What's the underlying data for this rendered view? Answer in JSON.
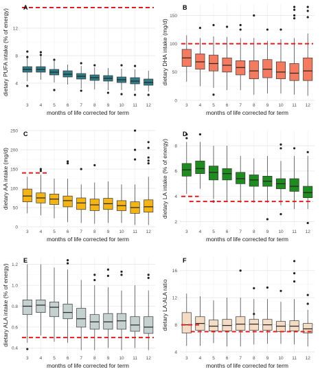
{
  "xlabel": "months of life corrected for term",
  "chart_data": [
    {
      "panel": "A",
      "type": "box",
      "ylabel": "dietary PUFA intake (% of energy)",
      "ylim": [
        1.5,
        15.5
      ],
      "yticks": [
        4,
        8,
        12
      ],
      "categories": [
        "3",
        "4",
        "5",
        "6",
        "7",
        "8",
        "9",
        "10",
        "11",
        "12"
      ],
      "fill": "#2e7d87",
      "reference_lines": [
        {
          "y": 15.0,
          "x_start_category": "3",
          "x_end_category": "12"
        }
      ],
      "boxes": [
        {
          "q1": 5.6,
          "median": 6.0,
          "q3": 6.4,
          "whisker_low": 4.3,
          "whisker_high": 8.0,
          "outliers": [
            8.6,
            3.6,
            7.8
          ]
        },
        {
          "q1": 5.6,
          "median": 6.0,
          "q3": 6.4,
          "whisker_low": 4.5,
          "whisker_high": 7.9,
          "outliers": [
            8.5,
            8.1
          ]
        },
        {
          "q1": 5.2,
          "median": 5.6,
          "q3": 6.0,
          "whisker_low": 4.1,
          "whisker_high": 7.2,
          "outliers": [
            7.4,
            3.0
          ]
        },
        {
          "q1": 4.9,
          "median": 5.3,
          "q3": 5.8,
          "whisker_low": 3.8,
          "whisker_high": 6.7,
          "outliers": []
        },
        {
          "q1": 4.6,
          "median": 5.0,
          "q3": 5.4,
          "whisker_low": 3.2,
          "whisker_high": 6.5,
          "outliers": [
            6.9,
            2.9
          ]
        },
        {
          "q1": 4.4,
          "median": 4.8,
          "q3": 5.2,
          "whisker_low": 3.1,
          "whisker_high": 6.3,
          "outliers": [
            6.6
          ]
        },
        {
          "q1": 4.3,
          "median": 4.7,
          "q3": 5.1,
          "whisker_low": 3.0,
          "whisker_high": 6.2,
          "outliers": [
            2.6
          ]
        },
        {
          "q1": 4.1,
          "median": 4.5,
          "q3": 4.9,
          "whisker_low": 3.0,
          "whisker_high": 6.1,
          "outliers": [
            6.6,
            2.4
          ]
        },
        {
          "q1": 3.9,
          "median": 4.3,
          "q3": 4.8,
          "whisker_low": 2.9,
          "whisker_high": 6.0,
          "outliers": [
            6.5,
            2.3
          ]
        },
        {
          "q1": 3.7,
          "median": 4.1,
          "q3": 4.6,
          "whisker_low": 2.8,
          "whisker_high": 5.8,
          "outliers": [
            2.3
          ]
        }
      ]
    },
    {
      "panel": "B",
      "type": "box",
      "ylabel": "dietary DHA intake (mg/d)",
      "ylim": [
        0,
        170
      ],
      "yticks": [
        0,
        50,
        100,
        150
      ],
      "categories": [
        "3",
        "4",
        "5",
        "6",
        "7",
        "8",
        "9",
        "10",
        "11",
        "12"
      ],
      "fill": "#f47b60",
      "reference_lines": [
        {
          "y": 100,
          "x_start_category": "3",
          "x_end_category": "12"
        }
      ],
      "boxes": [
        {
          "q1": 60,
          "median": 75,
          "q3": 90,
          "whisker_low": 33,
          "whisker_high": 115,
          "outliers": []
        },
        {
          "q1": 55,
          "median": 68,
          "q3": 82,
          "whisker_low": 25,
          "whisker_high": 110,
          "outliers": [
            128
          ]
        },
        {
          "q1": 52,
          "median": 65,
          "q3": 80,
          "whisker_low": 22,
          "whisker_high": 113,
          "outliers": [
            133,
            10
          ]
        },
        {
          "q1": 50,
          "median": 62,
          "q3": 75,
          "whisker_low": 18,
          "whisker_high": 112,
          "outliers": [
            130
          ]
        },
        {
          "q1": 45,
          "median": 58,
          "q3": 70,
          "whisker_low": 18,
          "whisker_high": 110,
          "outliers": [
            133,
            125
          ]
        },
        {
          "q1": 38,
          "median": 52,
          "q3": 70,
          "whisker_low": 10,
          "whisker_high": 110,
          "outliers": [
            150
          ]
        },
        {
          "q1": 40,
          "median": 55,
          "q3": 72,
          "whisker_low": 12,
          "whisker_high": 105,
          "outliers": [
            125
          ]
        },
        {
          "q1": 38,
          "median": 50,
          "q3": 68,
          "whisker_low": 12,
          "whisker_high": 108,
          "outliers": [
            125
          ]
        },
        {
          "q1": 35,
          "median": 48,
          "q3": 65,
          "whisker_low": 10,
          "whisker_high": 110,
          "outliers": [
            165,
            160,
            150,
            145
          ]
        },
        {
          "q1": 35,
          "median": 52,
          "q3": 75,
          "whisker_low": 8,
          "whisker_high": 118,
          "outliers": [
            165,
            158,
            147
          ]
        }
      ]
    },
    {
      "panel": "C",
      "type": "box",
      "ylabel": "dietary AA intake (mg/d)",
      "ylim": [
        0,
        250
      ],
      "yticks": [
        0,
        50,
        100,
        150,
        200,
        250
      ],
      "categories": [
        "3",
        "4",
        "5",
        "6",
        "7",
        "8",
        "9",
        "10",
        "11",
        "12"
      ],
      "fill": "#f4b414",
      "reference_lines": [
        {
          "y": 140,
          "x_start_category": "3",
          "x_end_category": "4"
        }
      ],
      "boxes": [
        {
          "q1": 65,
          "median": 80,
          "q3": 98,
          "whisker_low": 35,
          "whisker_high": 130,
          "outliers": []
        },
        {
          "q1": 62,
          "median": 75,
          "q3": 88,
          "whisker_low": 30,
          "whisker_high": 135,
          "outliers": [
            150,
            145
          ]
        },
        {
          "q1": 58,
          "median": 72,
          "q3": 85,
          "whisker_low": 22,
          "whisker_high": 125,
          "outliers": []
        },
        {
          "q1": 52,
          "median": 68,
          "q3": 80,
          "whisker_low": 12,
          "whisker_high": 125,
          "outliers": [
            170,
            165
          ]
        },
        {
          "q1": 45,
          "median": 62,
          "q3": 75,
          "whisker_low": 10,
          "whisker_high": 110,
          "outliers": [
            150
          ]
        },
        {
          "q1": 42,
          "median": 57,
          "q3": 72,
          "whisker_low": 8,
          "whisker_high": 115,
          "outliers": [
            160
          ]
        },
        {
          "q1": 45,
          "median": 60,
          "q3": 74,
          "whisker_low": 10,
          "whisker_high": 118,
          "outliers": []
        },
        {
          "q1": 42,
          "median": 55,
          "q3": 68,
          "whisker_low": 10,
          "whisker_high": 110,
          "outliers": []
        },
        {
          "q1": 35,
          "median": 50,
          "q3": 65,
          "whisker_low": 5,
          "whisker_high": 110,
          "outliers": [
            250,
            200,
            175
          ]
        },
        {
          "q1": 38,
          "median": 52,
          "q3": 70,
          "whisker_low": 5,
          "whisker_high": 130,
          "outliers": [
            220,
            205,
            180,
            172,
            165
          ]
        }
      ]
    },
    {
      "panel": "D",
      "type": "box",
      "ylabel": "dietary LA intake (% of energy)",
      "ylim": [
        1.6,
        9.2
      ],
      "yticks": [
        2,
        4,
        6,
        8
      ],
      "categories": [
        "3",
        "4",
        "5",
        "6",
        "7",
        "8",
        "9",
        "10",
        "11",
        "12"
      ],
      "fill": "#1e8c1e",
      "reference_lines": [
        {
          "y": 4.0,
          "x_start_category": "3",
          "x_end_category": "3.4"
        },
        {
          "y": 3.6,
          "x_start_category": "3.7",
          "x_end_category": "12"
        }
      ],
      "boxes": [
        {
          "q1": 5.6,
          "median": 6.1,
          "q3": 6.6,
          "whisker_low": 4.2,
          "whisker_high": 8.3,
          "outliers": [
            8.9,
            8.6
          ]
        },
        {
          "q1": 5.8,
          "median": 6.2,
          "q3": 6.8,
          "whisker_low": 4.6,
          "whisker_high": 8.3,
          "outliers": [
            8.9
          ]
        },
        {
          "q1": 5.3,
          "median": 5.9,
          "q3": 6.4,
          "whisker_low": 3.8,
          "whisker_high": 8.0,
          "outliers": [
            3.6
          ]
        },
        {
          "q1": 5.3,
          "median": 5.8,
          "q3": 6.2,
          "whisker_low": 3.6,
          "whisker_high": 8.0,
          "outliers": []
        },
        {
          "q1": 5.0,
          "median": 5.4,
          "q3": 5.9,
          "whisker_low": 3.5,
          "whisker_high": 7.2,
          "outliers": []
        },
        {
          "q1": 4.8,
          "median": 5.3,
          "q3": 5.7,
          "whisker_low": 3.5,
          "whisker_high": 7.0,
          "outliers": []
        },
        {
          "q1": 4.8,
          "median": 5.2,
          "q3": 5.6,
          "whisker_low": 3.5,
          "whisker_high": 7.2,
          "outliers": [
            2.2
          ]
        },
        {
          "q1": 4.6,
          "median": 5.0,
          "q3": 5.4,
          "whisker_low": 3.3,
          "whisker_high": 6.8,
          "outliers": [
            8.1,
            7.8,
            2.6
          ]
        },
        {
          "q1": 4.4,
          "median": 4.8,
          "q3": 5.4,
          "whisker_low": 3.0,
          "whisker_high": 7.2,
          "outliers": [
            7.8
          ]
        },
        {
          "q1": 3.9,
          "median": 4.3,
          "q3": 4.8,
          "whisker_low": 3.0,
          "whisker_high": 7.2,
          "outliers": [
            7.5,
            1.9
          ]
        }
      ]
    },
    {
      "panel": "E",
      "type": "box",
      "ylabel": "dietary ALA intake (% of energy)",
      "ylim": [
        0.35,
        1.27
      ],
      "yticks": [
        0.4,
        0.6,
        0.8,
        1.0,
        1.2
      ],
      "categories": [
        "3",
        "4",
        "5",
        "6",
        "7",
        "8",
        "9",
        "10",
        "11",
        "12"
      ],
      "fill": "#c5d1cf",
      "reference_lines": [
        {
          "y": 0.5,
          "x_start_category": "3",
          "x_end_category": "12"
        }
      ],
      "boxes": [
        {
          "q1": 0.72,
          "median": 0.8,
          "q3": 0.86,
          "whisker_low": 0.45,
          "whisker_high": 1.2,
          "outliers": [
            0.39
          ]
        },
        {
          "q1": 0.74,
          "median": 0.81,
          "q3": 0.86,
          "whisker_low": 0.52,
          "whisker_high": 1.2,
          "outliers": []
        },
        {
          "q1": 0.7,
          "median": 0.79,
          "q3": 0.84,
          "whisker_low": 0.46,
          "whisker_high": 1.17,
          "outliers": []
        },
        {
          "q1": 0.68,
          "median": 0.74,
          "q3": 0.82,
          "whisker_low": 0.45,
          "whisker_high": 1.15,
          "outliers": [
            1.24,
            1.21
          ]
        },
        {
          "q1": 0.6,
          "median": 0.68,
          "q3": 0.78,
          "whisker_low": 0.38,
          "whisker_high": 1.05,
          "outliers": []
        },
        {
          "q1": 0.58,
          "median": 0.65,
          "q3": 0.72,
          "whisker_low": 0.38,
          "whisker_high": 1.0,
          "outliers": [
            1.1,
            1.05
          ]
        },
        {
          "q1": 0.58,
          "median": 0.65,
          "q3": 0.73,
          "whisker_low": 0.4,
          "whisker_high": 0.98,
          "outliers": [
            1.15,
            1.09
          ]
        },
        {
          "q1": 0.58,
          "median": 0.66,
          "q3": 0.73,
          "whisker_low": 0.38,
          "whisker_high": 0.95,
          "outliers": [
            1.13,
            1.1
          ]
        },
        {
          "q1": 0.56,
          "median": 0.62,
          "q3": 0.7,
          "whisker_low": 0.4,
          "whisker_high": 1.0,
          "outliers": []
        },
        {
          "q1": 0.54,
          "median": 0.6,
          "q3": 0.7,
          "whisker_low": 0.38,
          "whisker_high": 0.95,
          "outliers": [
            1.1,
            1.07
          ]
        }
      ]
    },
    {
      "panel": "F",
      "type": "box",
      "ylabel": "dietary LA:ALA ratio",
      "ylim": [
        3.8,
        18.0
      ],
      "yticks": [
        4,
        8,
        12,
        16
      ],
      "categories": [
        "3",
        "4",
        "5",
        "6",
        "7",
        "8",
        "9",
        "10",
        "11",
        "12"
      ],
      "fill": "#f4dcc4",
      "reference_lines": [
        {
          "y": 8.0,
          "x_start_category": "3",
          "x_end_category": "3.6"
        },
        {
          "y": 7.0,
          "x_start_category": "3.8",
          "x_end_category": "12"
        }
      ],
      "boxes": [
        {
          "q1": 6.8,
          "median": 8.0,
          "q3": 9.8,
          "whisker_low": 4.9,
          "whisker_high": 12.6,
          "outliers": []
        },
        {
          "q1": 7.2,
          "median": 8.2,
          "q3": 9.2,
          "whisker_low": 4.9,
          "whisker_high": 12.2,
          "outliers": []
        },
        {
          "q1": 7.1,
          "median": 7.8,
          "q3": 8.7,
          "whisker_low": 5.3,
          "whisker_high": 11.6,
          "outliers": []
        },
        {
          "q1": 7.1,
          "median": 7.9,
          "q3": 8.8,
          "whisker_low": 4.8,
          "whisker_high": 12.0,
          "outliers": []
        },
        {
          "q1": 7.2,
          "median": 8.1,
          "q3": 9.2,
          "whisker_low": 4.8,
          "whisker_high": 12.0,
          "outliers": [
            16.0
          ]
        },
        {
          "q1": 7.2,
          "median": 8.1,
          "q3": 8.8,
          "whisker_low": 5.1,
          "whisker_high": 11.8,
          "outliers": [
            13.4,
            9.6
          ]
        },
        {
          "q1": 7.2,
          "median": 8.0,
          "q3": 8.8,
          "whisker_low": 5.2,
          "whisker_high": 11.8,
          "outliers": [
            13.5
          ]
        },
        {
          "q1": 7.0,
          "median": 7.8,
          "q3": 8.5,
          "whisker_low": 5.2,
          "whisker_high": 11.4,
          "outliers": [
            13.0
          ]
        },
        {
          "q1": 7.1,
          "median": 7.8,
          "q3": 8.6,
          "whisker_low": 5.1,
          "whisker_high": 11.8,
          "outliers": [
            17.4,
            15.6,
            14.4
          ]
        },
        {
          "q1": 6.8,
          "median": 7.4,
          "q3": 8.2,
          "whisker_low": 4.8,
          "whisker_high": 10.2,
          "outliers": [
            12.4,
            11.1
          ]
        }
      ]
    }
  ]
}
